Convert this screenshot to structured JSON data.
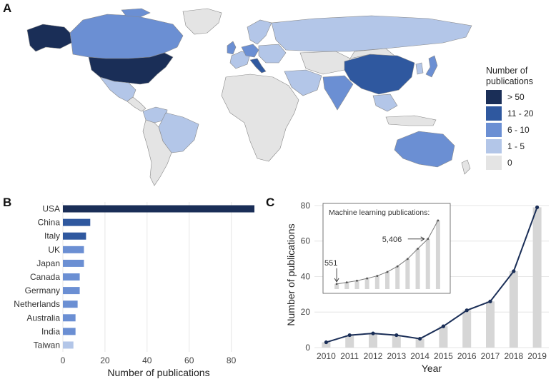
{
  "panels": {
    "a": "A",
    "b": "B",
    "c": "C"
  },
  "legend": {
    "title_line1": "Number of",
    "title_line2": "publications",
    "items": [
      {
        "label": "> 50",
        "color": "#1a2e57"
      },
      {
        "label": "11 - 20",
        "color": "#2f589f"
      },
      {
        "label": "6 - 10",
        "color": "#6b8fd3"
      },
      {
        "label": "1 - 5",
        "color": "#b3c6e8"
      },
      {
        "label": "0",
        "color": "#e4e4e4"
      }
    ]
  },
  "map_data": {
    "type": "choropleth",
    "countries": [
      {
        "name": "USA",
        "bin": "> 50"
      },
      {
        "name": "Alaska (USA)",
        "bin": "> 50"
      },
      {
        "name": "Canada",
        "bin": "6 - 10"
      },
      {
        "name": "Greenland",
        "bin": "0"
      },
      {
        "name": "Mexico",
        "bin": "1 - 5"
      },
      {
        "name": "Brazil",
        "bin": "1 - 5"
      },
      {
        "name": "Colombia",
        "bin": "1 - 5"
      },
      {
        "name": "South America (rest)",
        "bin": "0"
      },
      {
        "name": "China",
        "bin": "11 - 20"
      },
      {
        "name": "Italy",
        "bin": "11 - 20"
      },
      {
        "name": "Japan",
        "bin": "6 - 10"
      },
      {
        "name": "UK",
        "bin": "6 - 10"
      },
      {
        "name": "Germany",
        "bin": "6 - 10"
      },
      {
        "name": "Netherlands",
        "bin": "6 - 10"
      },
      {
        "name": "India",
        "bin": "6 - 10"
      },
      {
        "name": "Australia",
        "bin": "6 - 10"
      },
      {
        "name": "Russia",
        "bin": "1 - 5"
      },
      {
        "name": "Scandinavia",
        "bin": "1 - 5"
      },
      {
        "name": "Iran",
        "bin": "1 - 5"
      },
      {
        "name": "Saudi Arabia",
        "bin": "1 - 5"
      },
      {
        "name": "South Korea",
        "bin": "1 - 5"
      },
      {
        "name": "Southeast Asia",
        "bin": "1 - 5"
      },
      {
        "name": "Africa",
        "bin": "0"
      },
      {
        "name": "Central Asia",
        "bin": "0"
      }
    ]
  },
  "chart_data": [
    {
      "type": "bar",
      "orientation": "horizontal",
      "categories": [
        "USA",
        "China",
        "Italy",
        "UK",
        "Japan",
        "Canada",
        "Germany",
        "Netherlands",
        "Australia",
        "India",
        "Taiwan"
      ],
      "values": [
        91,
        13,
        11,
        10,
        10,
        8,
        8,
        7,
        6,
        6,
        5
      ],
      "colors": [
        "#1a2e57",
        "#2f589f",
        "#2f589f",
        "#6b8fd3",
        "#6b8fd3",
        "#6b8fd3",
        "#6b8fd3",
        "#6b8fd3",
        "#6b8fd3",
        "#6b8fd3",
        "#b3c6e8"
      ],
      "xlabel": "Number of publications",
      "xticks": [
        0,
        20,
        40,
        60,
        80
      ],
      "xlim": [
        0,
        91
      ]
    },
    {
      "type": "line",
      "x": [
        2010,
        2011,
        2012,
        2013,
        2014,
        2015,
        2016,
        2017,
        2018,
        2019
      ],
      "values": [
        3,
        7,
        8,
        7,
        5,
        12,
        21,
        26,
        43,
        79
      ],
      "bar_values": [
        3,
        7,
        8,
        7,
        5,
        12,
        21,
        26,
        43,
        79
      ],
      "xlabel": "Year",
      "ylabel": "Number of publications",
      "yticks": [
        0,
        20,
        40,
        60,
        80
      ],
      "ylim": [
        0,
        82
      ],
      "line_color": "#1a2e57",
      "inset": {
        "type": "line",
        "title": "Machine learning publications:",
        "values": [
          551,
          720,
          900,
          1150,
          1420,
          1850,
          2450,
          3250,
          4350,
          5406,
          7400
        ],
        "annotations": [
          {
            "label": "551",
            "index": 0
          },
          {
            "label": "5,406",
            "index": 9
          }
        ]
      }
    }
  ]
}
